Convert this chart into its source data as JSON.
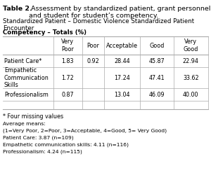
{
  "title_bold": "Table 2.",
  "title_rest": " Assessment by standardized patient, grant personnel\nand student for student’s competency.",
  "subtitle": "Standardized Patient – Domestic Violence Standardized Patient\nEncounter",
  "section_header": "Competency – Totals (%)",
  "col_headers": [
    "Very\nPoor",
    "Poor",
    "Acceptable",
    "Good",
    "Very\nGood"
  ],
  "row_labels": [
    "Patient Care*",
    "Empathetic\nCommunication\nSkills",
    "Professionalism"
  ],
  "table_data": [
    [
      "1.83",
      "0.92",
      "28.44",
      "45.87",
      "22.94"
    ],
    [
      "1.72",
      "",
      "17.24",
      "47.41",
      "33.62"
    ],
    [
      "0.87",
      "",
      "13.04",
      "46.09",
      "40.00"
    ]
  ],
  "footnote": "* Four missing values",
  "avg_means_lines": [
    "Average means:",
    "(1=Very Poor, 2=Poor, 3=Acceptable, 4=Good, 5= Very Good)",
    "Patient Care: 3.87 (n=109)",
    "Empathetic communication skills: 4.11 (n=116)",
    "Professionalism: 4.24 (n=115)"
  ],
  "bg_color": "#ffffff",
  "text_color": "#000000",
  "line_color": "#aaaaaa",
  "title_fs": 6.8,
  "body_fs": 6.2,
  "small_fs": 5.8
}
